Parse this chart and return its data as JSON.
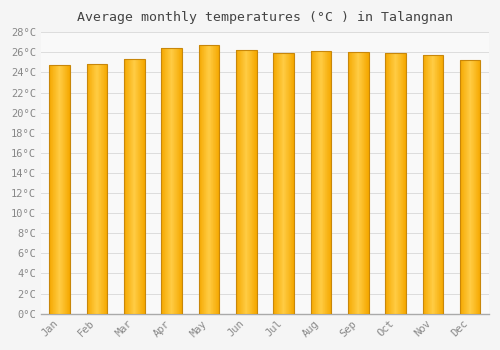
{
  "title": "Average monthly temperatures (°C ) in Talangnan",
  "months": [
    "Jan",
    "Feb",
    "Mar",
    "Apr",
    "May",
    "Jun",
    "Jul",
    "Aug",
    "Sep",
    "Oct",
    "Nov",
    "Dec"
  ],
  "values": [
    24.7,
    24.8,
    25.3,
    26.4,
    26.7,
    26.2,
    25.9,
    26.1,
    26.0,
    25.9,
    25.7,
    25.2
  ],
  "bar_color_center": "#FFCC44",
  "bar_color_edge": "#F5A800",
  "bar_edge_color": "#C8870A",
  "ylim": [
    0,
    28
  ],
  "ytick_step": 2,
  "background_color": "#f5f5f5",
  "plot_bg_color": "#f9f9f9",
  "grid_color": "#dddddd",
  "title_fontsize": 9.5,
  "tick_fontsize": 7.5,
  "tick_color": "#888888",
  "font_family": "monospace",
  "bar_width": 0.55
}
